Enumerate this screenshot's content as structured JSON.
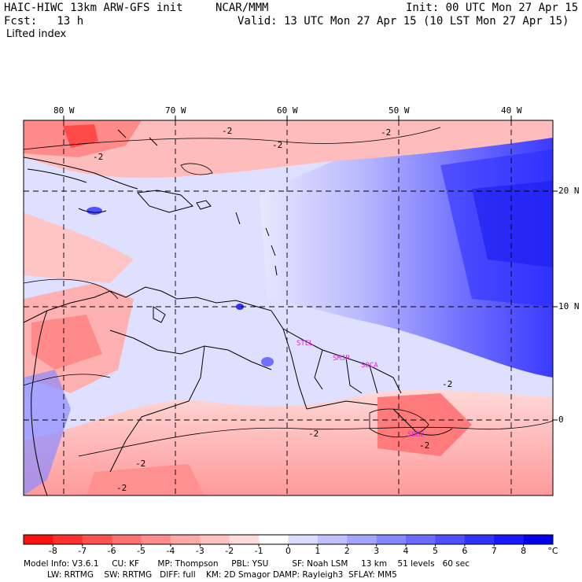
{
  "header": {
    "title_left": "HAIC-HIWC 13km ARW-GFS init",
    "title_center": "NCAR/MMM",
    "init": "Init: 00 UTC Mon 27 Apr 15",
    "fcst": "Fcst:   13 h",
    "valid": "Valid: 13 UTC Mon 27 Apr 15 (10 LST Mon 27 Apr 15)",
    "field": "Lifted index"
  },
  "map": {
    "lon_labels": [
      "80 W",
      "70 W",
      "60 W",
      "50 W",
      "40 W"
    ],
    "lat_labels": [
      "20 N",
      "10 N",
      "0"
    ],
    "contour_labels": [
      "-2",
      "-2",
      "-2",
      "-2",
      "-2",
      "-2",
      "-2",
      "-2",
      "-2"
    ],
    "site_labels": [
      "STEL",
      "SMJP",
      "SOCA",
      "SBBE"
    ],
    "colors": {
      "negative_strong": "#ff1a1a",
      "negative_light": "#ffd0d0",
      "neutral": "#ffffff",
      "positive_light": "#d8d8ff",
      "positive_strong": "#1a1aff",
      "site_label": "#e020e0"
    }
  },
  "colorbar": {
    "labels": [
      "-8",
      "-7",
      "-6",
      "-5",
      "-4",
      "-3",
      "-2",
      "-1",
      "0",
      "1",
      "2",
      "3",
      "4",
      "5",
      "6",
      "7",
      "8"
    ],
    "unit": "°C",
    "colors": [
      "#ff1010",
      "#ff3030",
      "#ff5050",
      "#ff6f6f",
      "#ff8c8c",
      "#ffa8a8",
      "#ffc2c2",
      "#ffdcdc",
      "#ffffff",
      "#dcdcff",
      "#c0c0ff",
      "#a4a4ff",
      "#8686ff",
      "#6a6aff",
      "#4e4eff",
      "#3232ff",
      "#1818ff",
      "#0000ee"
    ]
  },
  "footer": {
    "line1": "Model Info: V3.6.1     CU: KF       MP: Thompson     PBL: YSU         SF: Noah LSM     13 km    51 levels   60 sec",
    "line2": "         LW: RRTMG    SW: RRTMG   DIFF: full    KM: 2D Smagor DAMP: Rayleigh3  SFLAY: MM5"
  }
}
